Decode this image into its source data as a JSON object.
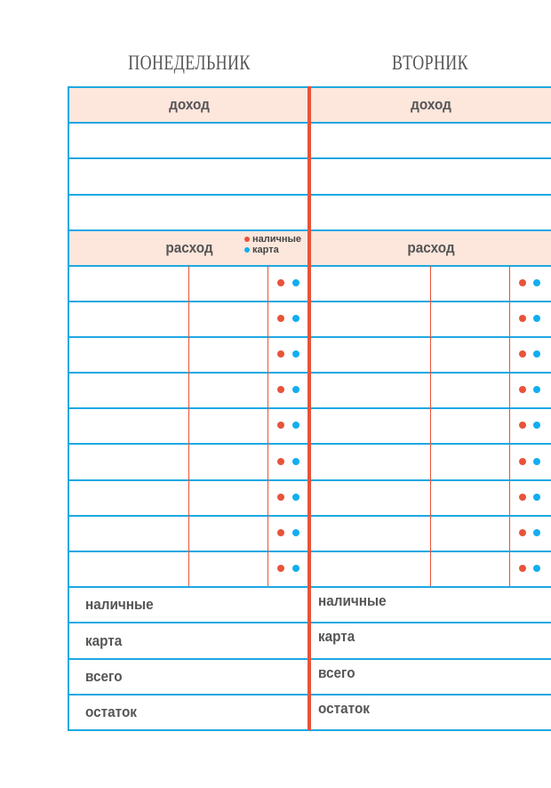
{
  "days": [
    {
      "title": "ПОНЕДЕЛЬНИК",
      "income_label": "доход",
      "expense_label": "расход",
      "summary": [
        "наличные",
        "карта",
        "всего",
        "остаток"
      ]
    },
    {
      "title": "ВТОРНИК",
      "income_label": "доход",
      "expense_label": "расход",
      "summary": [
        "наличные",
        "карта",
        "всего",
        "остаток"
      ]
    }
  ],
  "legend": {
    "cash": "наличные",
    "card": "карта"
  },
  "colors": {
    "cash": "#e8533a",
    "card": "#12aef0",
    "grid": "#1ea8e2",
    "header_bg": "#fde6dc"
  },
  "expense_rows": 9,
  "income_rows": 3
}
